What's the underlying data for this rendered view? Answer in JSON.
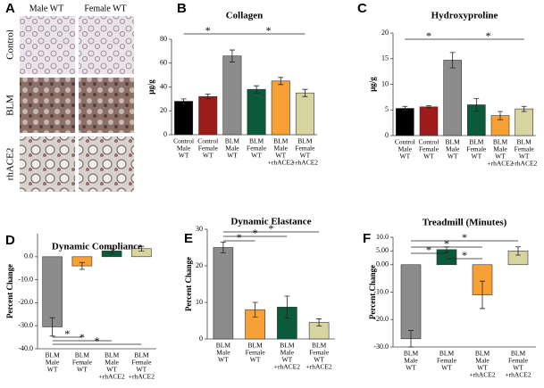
{
  "panel_a": {
    "panel_label": "A",
    "columns": [
      "Male WT",
      "Female WT"
    ],
    "rows": [
      "Control",
      "BLM",
      "rhACE2"
    ]
  },
  "chart_data": [
    {
      "type": "bar",
      "panel_label": "B",
      "title": "Collagen",
      "ylabel": "μg/g",
      "categories": [
        [
          "Control",
          "Male",
          "WT"
        ],
        [
          "Control",
          "Female",
          "WT"
        ],
        [
          "BLM",
          "Male",
          "WT"
        ],
        [
          "BLM",
          "Female",
          "WT"
        ],
        [
          "BLM",
          "Male",
          "WT",
          "+rhACE2"
        ],
        [
          "BLM",
          "Female",
          "WT",
          "+rhACE2"
        ]
      ],
      "values": [
        28,
        32,
        66,
        38,
        45,
        35
      ],
      "errors": [
        2,
        2,
        5,
        3,
        3,
        3
      ],
      "colors": [
        "#000000",
        "#9e1b1b",
        "#8c8c8c",
        "#0b5a3c",
        "#f7a035",
        "#d8d4a0"
      ],
      "ylim": [
        0,
        80
      ],
      "yticks": [
        0,
        20,
        40,
        60,
        80
      ],
      "annotations": [
        "*",
        "*"
      ]
    },
    {
      "type": "bar",
      "panel_label": "C",
      "title": "Hydroxyproline",
      "ylabel": "μg/g",
      "categories": [
        [
          "Control",
          "Male",
          "WT"
        ],
        [
          "Control",
          "Female",
          "WT"
        ],
        [
          "BLM",
          "Male",
          "WT"
        ],
        [
          "BLM",
          "Female",
          "WT"
        ],
        [
          "BLM",
          "Male",
          "WT",
          "+rhACE2"
        ],
        [
          "BLM",
          "Female",
          "WT",
          "+rhACE2"
        ]
      ],
      "values": [
        5.3,
        5.6,
        14.7,
        6.0,
        3.9,
        5.2
      ],
      "errors": [
        0.4,
        0.2,
        1.5,
        1.2,
        0.8,
        0.5
      ],
      "colors": [
        "#000000",
        "#9e1b1b",
        "#8c8c8c",
        "#0b5a3c",
        "#f7a035",
        "#d8d4a0"
      ],
      "ylim": [
        0,
        20
      ],
      "yticks": [
        0,
        5,
        10,
        15,
        20
      ],
      "annotations": [
        "*",
        "*"
      ]
    },
    {
      "type": "bar",
      "panel_label": "D",
      "title": "Dynamic Compliance",
      "ylabel": "Percent Change",
      "categories": [
        [
          "BLM",
          "Male",
          "WT"
        ],
        [
          "BLM",
          "Female",
          "WT"
        ],
        [
          "BLM",
          "Male",
          "WT",
          "+rhACE2"
        ],
        [
          "BLM",
          "Female",
          "WT",
          "+rhACE2"
        ]
      ],
      "values": [
        -30.5,
        -4,
        2.5,
        3.5
      ],
      "errors": [
        4,
        1.5,
        1,
        1
      ],
      "colors": [
        "#8c8c8c",
        "#f7a035",
        "#0b5a3c",
        "#d8d4a0"
      ],
      "ylim": [
        -40,
        10
      ],
      "yticks": [
        {
          "value": 0,
          "label": "0.0"
        },
        {
          "value": -10,
          "label": "-10.0"
        },
        {
          "value": -20,
          "label": "-20.0"
        },
        {
          "value": -30,
          "label": "-30.0"
        },
        {
          "value": -40,
          "label": "-40.0"
        }
      ],
      "annotations": [
        "*",
        "*",
        "*"
      ]
    },
    {
      "type": "bar",
      "panel_label": "E",
      "title": "Dynamic Elastance",
      "ylabel": "Percent Change",
      "categories": [
        [
          "BLM",
          "Male",
          "WT"
        ],
        [
          "BLM",
          "Female",
          "WT"
        ],
        [
          "BLM",
          "Male",
          "WT",
          "+rhACE2"
        ],
        [
          "BLM",
          "Female",
          "WT",
          "+rhACE2"
        ]
      ],
      "values": [
        25,
        8,
        8.7,
        4.5
      ],
      "errors": [
        1.5,
        2,
        3,
        1
      ],
      "colors": [
        "#8c8c8c",
        "#f7a035",
        "#0b5a3c",
        "#d8d4a0"
      ],
      "ylim": [
        0,
        30
      ],
      "yticks": [
        0,
        10,
        20,
        30
      ],
      "annotations": [
        "*",
        "*",
        "*"
      ]
    },
    {
      "type": "bar",
      "panel_label": "F",
      "title": "Treadmill (Minutes)",
      "ylabel": "Percent  Change",
      "categories": [
        [
          "BLM",
          "Male",
          "WT"
        ],
        [
          "BLM",
          "Female",
          "WT"
        ],
        [
          "BLM",
          "Male",
          "WT",
          "+rhACE2"
        ],
        [
          "BLM",
          "Female",
          "WT",
          "+rhACE2"
        ]
      ],
      "values": [
        -27,
        5.5,
        -11,
        5
      ],
      "errors": [
        3,
        1,
        5,
        1.5
      ],
      "colors": [
        "#8c8c8c",
        "#0b5a3c",
        "#f7a035",
        "#d8d4a0"
      ],
      "ylim": [
        -30,
        10
      ],
      "yticks": [
        {
          "value": 10,
          "label": "10.0"
        },
        {
          "value": 5,
          "label": "5.00"
        },
        {
          "value": 0,
          "label": "0.00"
        },
        {
          "value": -10,
          "label": "-10.0"
        },
        {
          "value": -20,
          "label": "-20.0"
        },
        {
          "value": -30,
          "label": "-30.0"
        }
      ],
      "annotations": [
        "*",
        "*",
        "*",
        "*"
      ]
    }
  ]
}
